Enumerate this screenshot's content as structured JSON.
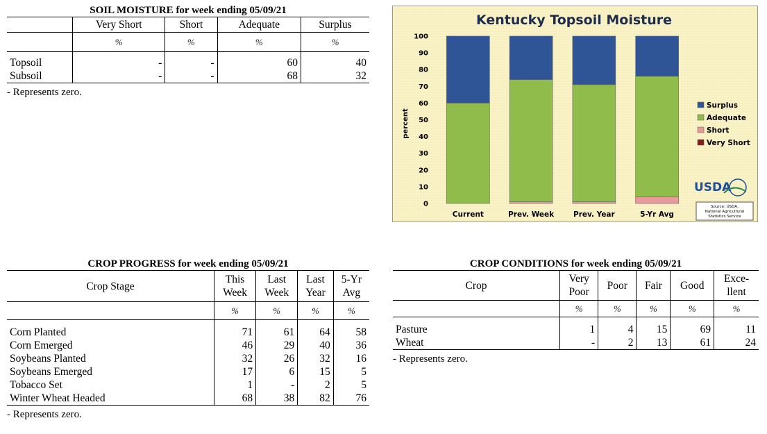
{
  "soil": {
    "title": "SOIL MOISTURE for week ending 05/09/21",
    "headers": [
      "Very Short",
      "Short",
      "Adequate",
      "Surplus"
    ],
    "units": [
      "%",
      "%",
      "%",
      "%"
    ],
    "rows": [
      {
        "label": "Topsoil",
        "values": [
          "-",
          "-",
          "60",
          "40"
        ]
      },
      {
        "label": "Subsoil",
        "values": [
          "-",
          "-",
          "68",
          "32"
        ]
      }
    ],
    "note": "- Represents zero."
  },
  "progress": {
    "title": "CROP PROGRESS for week ending 05/09/21",
    "stage_header": "Crop Stage",
    "headers": [
      [
        "This",
        "Week"
      ],
      [
        "Last",
        "Week"
      ],
      [
        "Last",
        "Year"
      ],
      [
        "5-Yr",
        "Avg"
      ]
    ],
    "units": [
      "%",
      "%",
      "%",
      "%"
    ],
    "rows": [
      {
        "label": "Corn Planted",
        "values": [
          "71",
          "61",
          "64",
          "58"
        ]
      },
      {
        "label": "Corn Emerged",
        "values": [
          "46",
          "29",
          "40",
          "36"
        ]
      },
      {
        "label": "Soybeans Planted",
        "values": [
          "32",
          "26",
          "32",
          "16"
        ]
      },
      {
        "label": "Soybeans Emerged",
        "values": [
          "17",
          "6",
          "15",
          "5"
        ]
      },
      {
        "label": "Tobacco Set",
        "values": [
          "1",
          "-",
          "2",
          "5"
        ]
      },
      {
        "label": "Winter Wheat Headed",
        "values": [
          "68",
          "38",
          "82",
          "76"
        ]
      }
    ],
    "note": "- Represents zero."
  },
  "conditions": {
    "title": "CROP CONDITIONS for week ending 05/09/21",
    "crop_header": "Crop",
    "headers": [
      [
        "Very",
        "Poor"
      ],
      [
        "Poor"
      ],
      [
        "Fair"
      ],
      [
        "Good"
      ],
      [
        "Exce-",
        "llent"
      ]
    ],
    "units": [
      "%",
      "%",
      "%",
      "%",
      "%"
    ],
    "rows": [
      {
        "label": "Pasture",
        "values": [
          "1",
          "4",
          "15",
          "69",
          "11"
        ]
      },
      {
        "label": "Wheat",
        "values": [
          "-",
          "2",
          "13",
          "61",
          "24"
        ]
      }
    ],
    "note": "- Represents zero."
  },
  "chart_data": {
    "type": "bar",
    "stacked": true,
    "title": "Kentucky Topsoil Moisture",
    "ylabel": "percent",
    "ylim": [
      0,
      100
    ],
    "yticks": [
      "0",
      "10",
      "20",
      "30",
      "40",
      "50",
      "60",
      "70",
      "80",
      "90",
      "100"
    ],
    "categories": [
      "Current",
      "Prev. Week",
      "Prev. Year",
      "5-Yr Avg"
    ],
    "series": [
      {
        "name": "Very Short",
        "values": [
          0,
          0,
          0,
          0
        ],
        "color": "#8b1a1a"
      },
      {
        "name": "Short",
        "values": [
          0,
          1,
          1,
          4
        ],
        "color": "#e89a9a"
      },
      {
        "name": "Adequate",
        "values": [
          60,
          73,
          70,
          72
        ],
        "color": "#8fbc4a"
      },
      {
        "name": "Surplus",
        "values": [
          40,
          26,
          29,
          24
        ],
        "color": "#2f5597"
      }
    ],
    "legend": "right",
    "legend_order": [
      "Surplus",
      "Adequate",
      "Short",
      "Very Short"
    ],
    "logo": "USDA",
    "source": [
      "Source: USDA,",
      "National Agricultural",
      "Statistics Service"
    ],
    "background": "#fbf3c8"
  }
}
